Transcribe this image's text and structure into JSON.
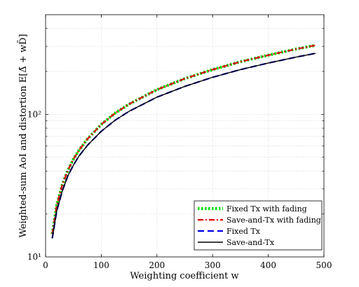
{
  "chart_data": {
    "type": "line",
    "xlabel": "Weighting coefficient w",
    "ylabel": "Weighted-sum AoI and distortion E[Δ̄ + wD̄]",
    "x_ticks": [
      0,
      100,
      200,
      300,
      400,
      500
    ],
    "y_ticks": [
      {
        "value": 10,
        "label": "10¹"
      },
      {
        "value": 100,
        "label": "10²"
      }
    ],
    "xlim": [
      0,
      500
    ],
    "ylim": [
      10,
      500
    ],
    "yscale": "log",
    "grid": true,
    "legend_position": "bottom-right",
    "x": [
      12,
      20,
      30,
      40,
      50,
      60,
      75,
      100,
      125,
      150,
      200,
      250,
      300,
      350,
      400,
      450,
      485
    ],
    "series": [
      {
        "name": "Fixed Tx with fading",
        "color": "#00e000",
        "style": "dotted",
        "values": [
          14.5,
          23,
          32,
          40.5,
          48.5,
          56,
          67,
          85,
          102,
          118,
          149,
          178,
          206,
          234,
          260,
          287,
          305
        ]
      },
      {
        "name": "Save-and-Tx with fading",
        "color": "#e00000",
        "style": "dashdot",
        "values": [
          14.5,
          23,
          32,
          40.5,
          48.5,
          56,
          67,
          85,
          102,
          118,
          149,
          178,
          206,
          234,
          260,
          287,
          305
        ]
      },
      {
        "name": "Fixed Tx",
        "color": "#0000ee",
        "style": "dashed",
        "values": [
          13.5,
          21,
          29,
          37,
          44,
          51,
          60.5,
          76,
          91,
          105,
          132,
          157,
          182,
          206,
          229,
          252,
          268
        ]
      },
      {
        "name": "Save-and-Tx",
        "color": "#000000",
        "style": "solid",
        "values": [
          13.5,
          21,
          29,
          37,
          44,
          51,
          60.5,
          76,
          91,
          105,
          132,
          157,
          182,
          206,
          229,
          252,
          268
        ]
      }
    ]
  }
}
